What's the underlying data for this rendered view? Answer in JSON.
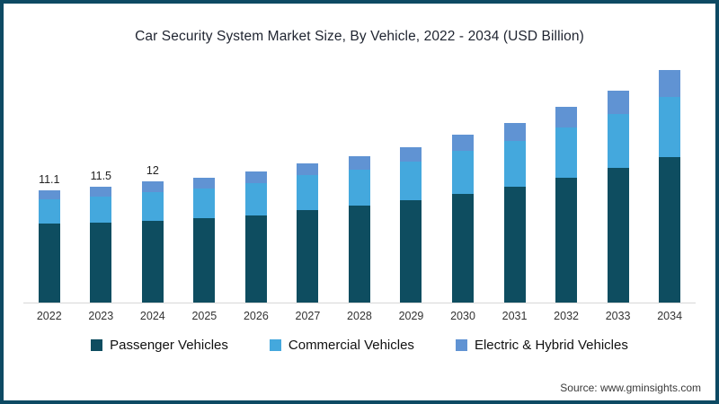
{
  "frame": {
    "border_color": "#0d4a63",
    "background": "#ffffff"
  },
  "title": "Car Security System Market Size, By Vehicle, 2022 - 2034 (USD Billion)",
  "source": "Source: www.gminsights.com",
  "chart_data": {
    "type": "bar",
    "stacked": true,
    "title": "Car Security System Market Size, By Vehicle, 2022 - 2034 (USD Billion)",
    "categories": [
      "2022",
      "2023",
      "2024",
      "2025",
      "2026",
      "2027",
      "2028",
      "2029",
      "2030",
      "2031",
      "2032",
      "2033",
      "2034"
    ],
    "series": [
      {
        "name": "Passenger Vehicles",
        "color": "#0e4d60",
        "values": [
          7.8,
          7.9,
          8.1,
          8.4,
          8.6,
          9.2,
          9.6,
          10.1,
          10.8,
          11.5,
          12.4,
          13.3,
          14.4
        ]
      },
      {
        "name": "Commercial Vehicles",
        "color": "#44a8dd",
        "values": [
          2.4,
          2.6,
          2.8,
          2.9,
          3.2,
          3.4,
          3.6,
          3.9,
          4.2,
          4.5,
          4.9,
          5.4,
          6.0
        ]
      },
      {
        "name": "Electric & Hybrid Vehicles",
        "color": "#6093d3",
        "values": [
          0.9,
          1.0,
          1.1,
          1.1,
          1.2,
          1.2,
          1.3,
          1.4,
          1.6,
          1.8,
          2.1,
          2.3,
          2.6
        ]
      }
    ],
    "totals": [
      11.1,
      11.5,
      12.0,
      12.4,
      13.0,
      13.8,
      14.5,
      15.4,
      16.6,
      17.8,
      19.4,
      21.0,
      23.0
    ],
    "bar_labels": [
      "11.1",
      "11.5",
      "12",
      "",
      "",
      "",
      "",
      "",
      "",
      "",
      "",
      "",
      ""
    ],
    "xlabel": "",
    "ylabel": "",
    "ylim": [
      0,
      24
    ],
    "grid": false,
    "legend_position": "bottom"
  }
}
